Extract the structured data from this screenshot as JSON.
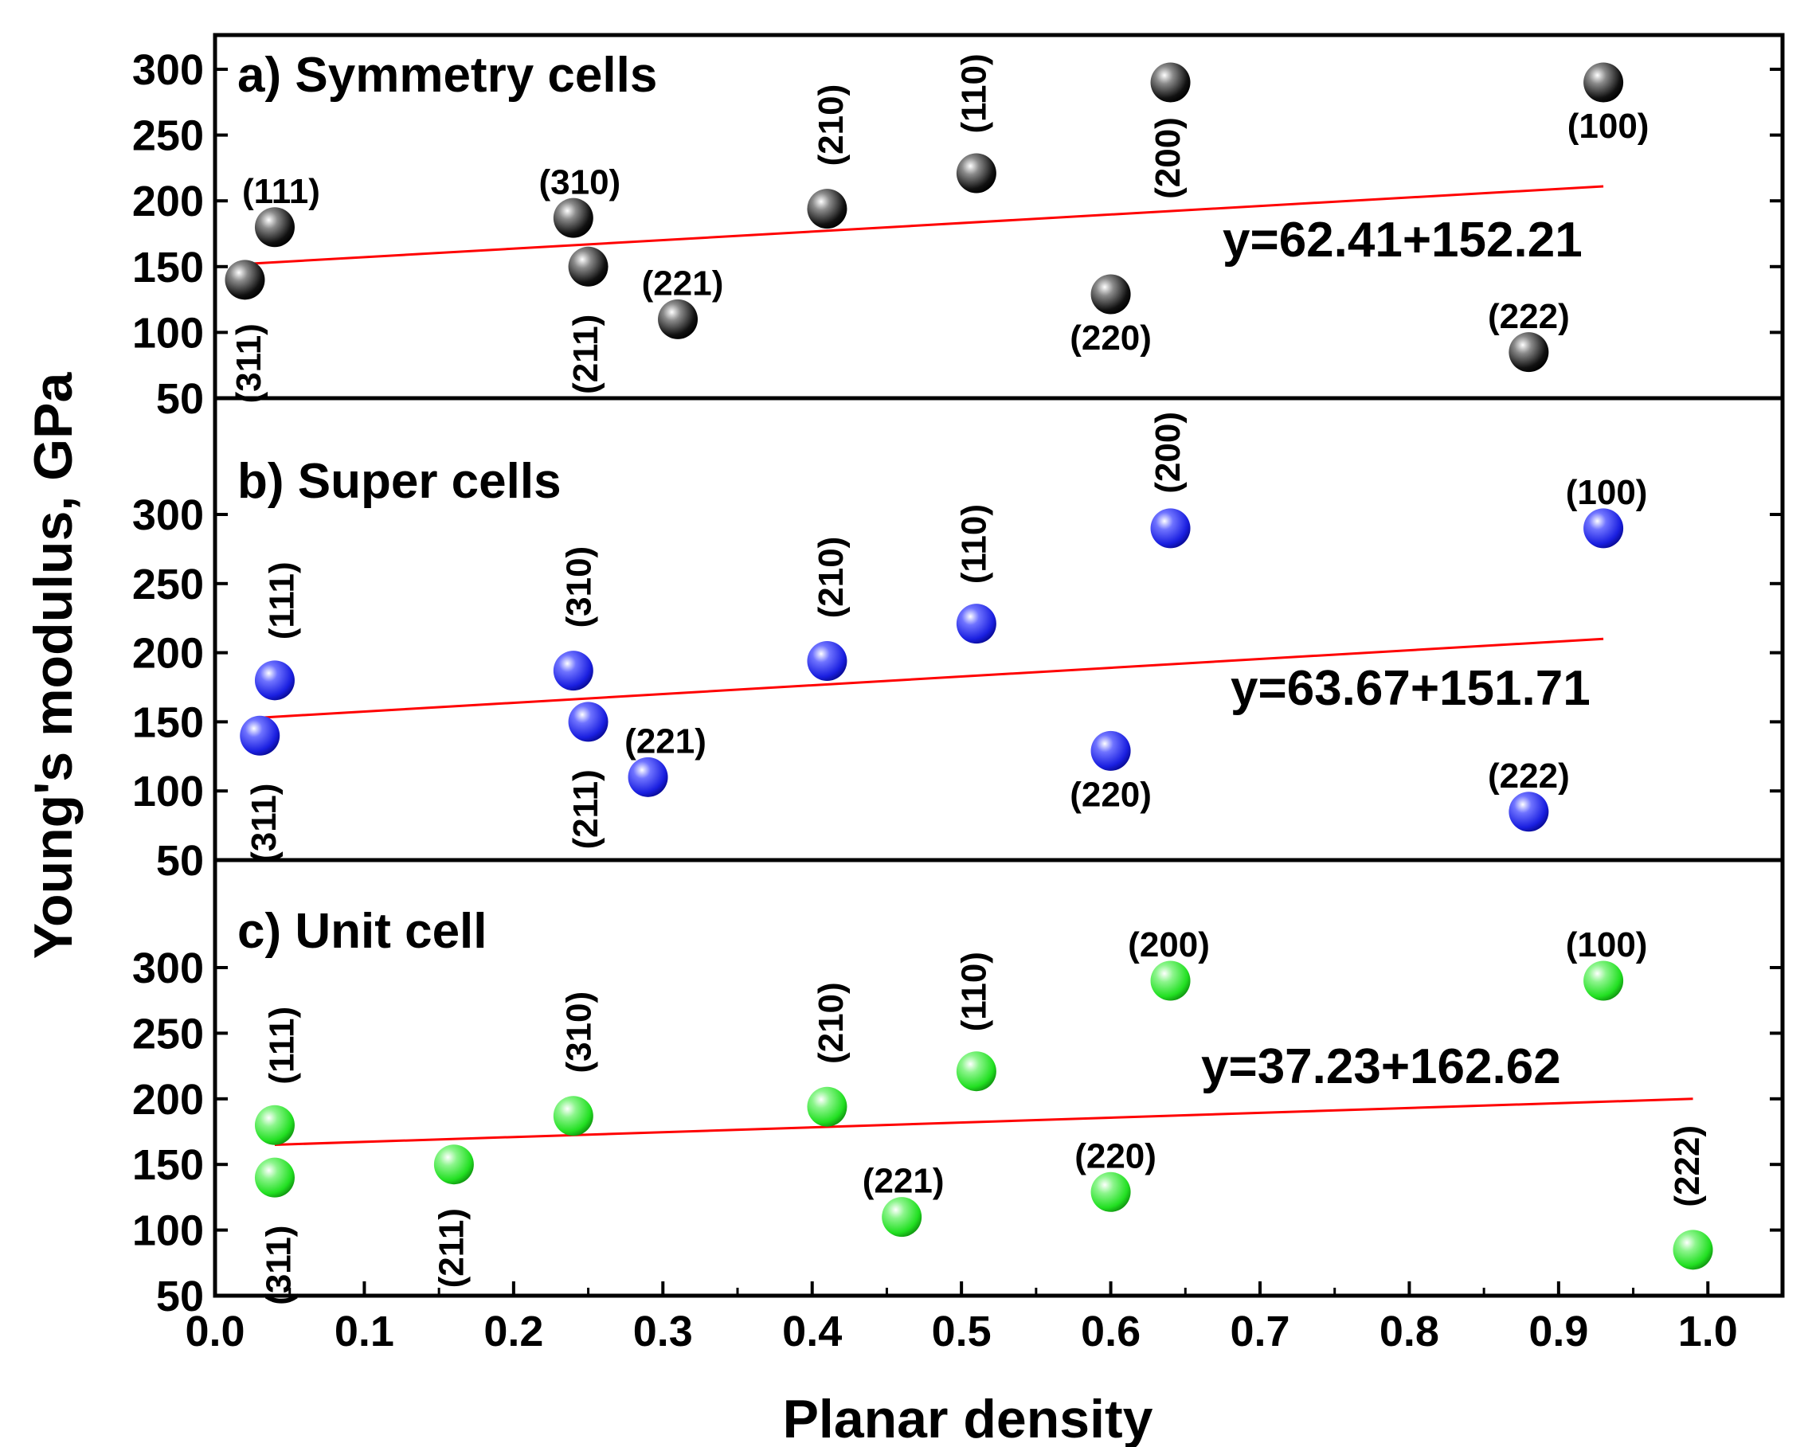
{
  "chart_data": {
    "type": "scatter",
    "xlabel": "Planar density",
    "ylabel": "Young's modulus, GPa",
    "xlim": [
      0.0,
      1.05
    ],
    "ylim": [
      50,
      325
    ],
    "xticks": [
      "0.0",
      "0.1",
      "0.2",
      "0.3",
      "0.4",
      "0.5",
      "0.6",
      "0.7",
      "0.8",
      "0.9",
      "1.0"
    ],
    "yticks_top": [
      "50",
      "100",
      "150",
      "200",
      "250",
      "300"
    ],
    "yticks_lower": [
      "50",
      "100",
      "150",
      "200",
      "250",
      "300"
    ],
    "colors": {
      "a": "#1a1a1a",
      "b": "#1f24e6",
      "c": "#2ee62e",
      "fit": "#ff0000"
    },
    "panels": [
      {
        "key": "a",
        "title": "a) Symmetry cells",
        "fit_label": "y=62.41+152.21",
        "fit_line": {
          "x": [
            0.02,
            0.93
          ],
          "y": [
            152,
            211
          ]
        },
        "points": [
          {
            "label": "(311)",
            "x": 0.02,
            "y": 140
          },
          {
            "label": "(111)",
            "x": 0.04,
            "y": 180
          },
          {
            "label": "(310)",
            "x": 0.24,
            "y": 187
          },
          {
            "label": "(211)",
            "x": 0.25,
            "y": 150
          },
          {
            "label": "(221)",
            "x": 0.31,
            "y": 110
          },
          {
            "label": "(210)",
            "x": 0.41,
            "y": 194
          },
          {
            "label": "(110)",
            "x": 0.51,
            "y": 221
          },
          {
            "label": "(220)",
            "x": 0.6,
            "y": 129
          },
          {
            "label": "(200)",
            "x": 0.64,
            "y": 290
          },
          {
            "label": "(222)",
            "x": 0.88,
            "y": 85
          },
          {
            "label": "(100)",
            "x": 0.93,
            "y": 290
          }
        ]
      },
      {
        "key": "b",
        "title": "b) Super cells",
        "fit_label": "y=63.67+151.71",
        "fit_line": {
          "x": [
            0.03,
            0.93
          ],
          "y": [
            153,
            210
          ]
        },
        "points": [
          {
            "label": "(311)",
            "x": 0.03,
            "y": 140
          },
          {
            "label": "(111)",
            "x": 0.04,
            "y": 180
          },
          {
            "label": "(310)",
            "x": 0.24,
            "y": 187
          },
          {
            "label": "(211)",
            "x": 0.25,
            "y": 150
          },
          {
            "label": "(221)",
            "x": 0.29,
            "y": 110
          },
          {
            "label": "(210)",
            "x": 0.41,
            "y": 194
          },
          {
            "label": "(110)",
            "x": 0.51,
            "y": 221
          },
          {
            "label": "(220)",
            "x": 0.6,
            "y": 129
          },
          {
            "label": "(200)",
            "x": 0.64,
            "y": 290
          },
          {
            "label": "(222)",
            "x": 0.88,
            "y": 85
          },
          {
            "label": "(100)",
            "x": 0.93,
            "y": 290
          }
        ]
      },
      {
        "key": "c",
        "title": "c) Unit cell",
        "fit_label": "y=37.23+162.62",
        "fit_line": {
          "x": [
            0.04,
            0.99
          ],
          "y": [
            165,
            200
          ]
        },
        "points": [
          {
            "label": "(311)",
            "x": 0.04,
            "y": 140
          },
          {
            "label": "(111)",
            "x": 0.04,
            "y": 180
          },
          {
            "label": "(211)",
            "x": 0.16,
            "y": 150
          },
          {
            "label": "(310)",
            "x": 0.24,
            "y": 187
          },
          {
            "label": "(210)",
            "x": 0.41,
            "y": 194
          },
          {
            "label": "(221)",
            "x": 0.46,
            "y": 110
          },
          {
            "label": "(110)",
            "x": 0.51,
            "y": 221
          },
          {
            "label": "(220)",
            "x": 0.6,
            "y": 129
          },
          {
            "label": "(200)",
            "x": 0.64,
            "y": 290
          },
          {
            "label": "(100)",
            "x": 0.93,
            "y": 290
          },
          {
            "label": "(222)",
            "x": 0.99,
            "y": 85
          }
        ]
      }
    ]
  }
}
